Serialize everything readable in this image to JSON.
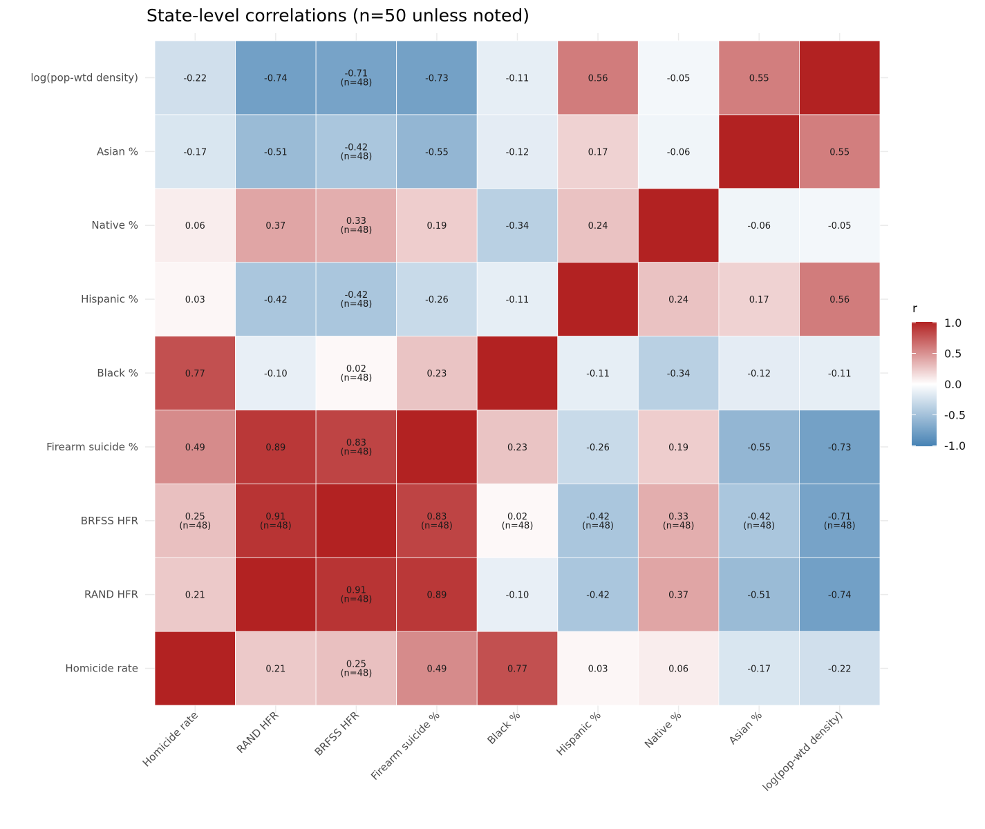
{
  "chart_data": {
    "type": "heatmap",
    "title": "State-level correlations (n=50 unless noted)",
    "xlabel": "",
    "ylabel": "",
    "variables": [
      "Homicide rate",
      "RAND HFR",
      "BRFSS HFR",
      "Firearm suicide %",
      "Black %",
      "Hispanic %",
      "Native %",
      "Asian %",
      "log(pop-wtd density)"
    ],
    "matrix": [
      [
        1,
        0.21,
        0.25,
        0.49,
        0.77,
        0.03,
        0.06,
        -0.17,
        -0.22
      ],
      [
        0.21,
        1,
        0.91,
        0.89,
        -0.1,
        -0.42,
        0.37,
        -0.51,
        -0.74
      ],
      [
        0.25,
        0.91,
        1,
        0.83,
        0.02,
        -0.42,
        0.33,
        -0.42,
        -0.71
      ],
      [
        0.49,
        0.89,
        0.83,
        1,
        0.23,
        -0.26,
        0.19,
        -0.55,
        -0.73
      ],
      [
        0.77,
        -0.1,
        0.02,
        0.23,
        1,
        -0.11,
        -0.34,
        -0.12,
        -0.11
      ],
      [
        0.03,
        -0.42,
        -0.42,
        -0.26,
        -0.11,
        1,
        0.24,
        0.17,
        0.56
      ],
      [
        0.06,
        0.37,
        0.33,
        0.19,
        -0.34,
        0.24,
        1,
        -0.06,
        -0.05
      ],
      [
        -0.17,
        -0.51,
        -0.42,
        -0.55,
        -0.12,
        0.17,
        -0.06,
        1,
        0.55
      ],
      [
        -0.22,
        -0.74,
        -0.71,
        -0.73,
        -0.11,
        0.56,
        -0.05,
        0.55,
        1
      ]
    ],
    "n_note_variable": "BRFSS HFR",
    "n_note_label": "(n=48)",
    "legend": {
      "title": "r",
      "position": "right",
      "range": [
        -1,
        1
      ],
      "ticks": [
        "1.0",
        "0.5",
        "0.0",
        "-0.5",
        "-1.0"
      ],
      "tick_values": [
        1,
        0.5,
        0,
        -0.5,
        -1
      ],
      "low_color": "#4682B4",
      "mid_color": "#FFFFFF",
      "high_color": "#B22222"
    }
  }
}
